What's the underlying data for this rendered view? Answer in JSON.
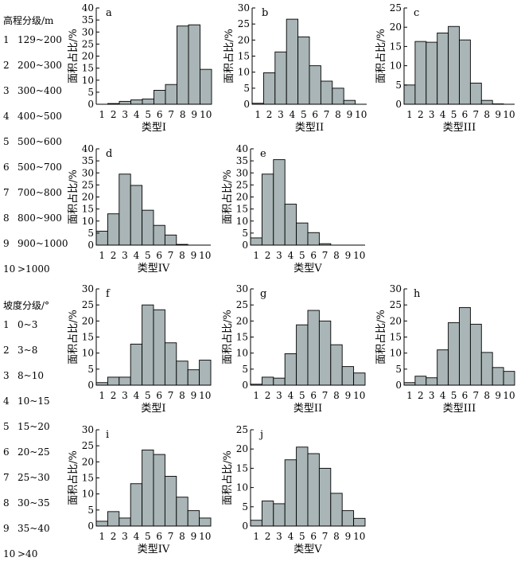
{
  "elevation_legend": {
    "title": "高程分级/m",
    "items": [
      {
        "num": "1",
        "range": "129~200"
      },
      {
        "num": "2",
        "range": "200~300"
      },
      {
        "num": "3",
        "range": "300~400"
      },
      {
        "num": "4",
        "range": "400~500"
      },
      {
        "num": "5",
        "range": "500~600"
      },
      {
        "num": "6",
        "range": "500~700"
      },
      {
        "num": "7",
        "range": "700~800"
      },
      {
        "num": "8",
        "range": "800~900"
      },
      {
        "num": "9",
        "range": "900~1000"
      },
      {
        "num": "10",
        "range": ">1000"
      }
    ]
  },
  "slope_legend": {
    "title": "坡度分级/°",
    "items": [
      {
        "num": "1",
        "range": "0~3"
      },
      {
        "num": "2",
        "range": "3~8"
      },
      {
        "num": "3",
        "range": "8~10"
      },
      {
        "num": "4",
        "range": "10~15"
      },
      {
        "num": "5",
        "range": "15~20"
      },
      {
        "num": "6",
        "range": "20~25"
      },
      {
        "num": "7",
        "range": "25~30"
      },
      {
        "num": "8",
        "range": "30~35"
      },
      {
        "num": "9",
        "range": "35~40"
      },
      {
        "num": "10",
        "range": ">40"
      }
    ]
  },
  "bar_color": "#a9b5b6",
  "chart_data": [
    {
      "panel": "a",
      "type": "bar",
      "categories": [
        "1",
        "2",
        "3",
        "4",
        "5",
        "6",
        "7",
        "8",
        "9",
        "10"
      ],
      "values": [
        0,
        0.3,
        1.2,
        1.8,
        2.2,
        5.8,
        8.2,
        32.5,
        33,
        14.5
      ],
      "ylim": [
        0,
        40
      ],
      "yticks": [
        0,
        5,
        10,
        15,
        20,
        25,
        30,
        35,
        40
      ],
      "ylabel": "面积占比/%",
      "xlabel": "类型I"
    },
    {
      "panel": "b",
      "type": "bar",
      "categories": [
        "1",
        "2",
        "3",
        "4",
        "5",
        "6",
        "7",
        "8",
        "9",
        "10"
      ],
      "values": [
        0.3,
        9.8,
        16.3,
        26.5,
        21,
        12,
        7.2,
        5,
        1.2,
        0
      ],
      "ylim": [
        0,
        30
      ],
      "yticks": [
        0,
        5,
        10,
        15,
        20,
        25,
        30
      ],
      "ylabel": "面积占比/%",
      "xlabel": "类型II"
    },
    {
      "panel": "c",
      "type": "bar",
      "categories": [
        "1",
        "2",
        "3",
        "4",
        "5",
        "6",
        "7",
        "8",
        "9",
        "10"
      ],
      "values": [
        5,
        16.3,
        16.1,
        18.5,
        20.2,
        16.7,
        5.5,
        1,
        0.1,
        0
      ],
      "ylim": [
        0,
        25
      ],
      "yticks": [
        0,
        5,
        10,
        15,
        20,
        25
      ],
      "ylabel": "面积占比/%",
      "xlabel": "类型III"
    },
    {
      "panel": "d",
      "type": "bar",
      "categories": [
        "1",
        "2",
        "3",
        "4",
        "5",
        "6",
        "7",
        "8",
        "9",
        "10"
      ],
      "values": [
        5.8,
        13,
        29.5,
        24.8,
        14.5,
        8.2,
        4.2,
        0.3,
        0,
        0
      ],
      "ylim": [
        0,
        40
      ],
      "yticks": [
        0,
        5,
        10,
        15,
        20,
        25,
        30,
        35,
        40
      ],
      "ylabel": "面积占比/%",
      "xlabel": "类型IV"
    },
    {
      "panel": "e",
      "type": "bar",
      "categories": [
        "1",
        "2",
        "3",
        "4",
        "5",
        "6",
        "7",
        "8",
        "9",
        "10"
      ],
      "values": [
        3,
        29.5,
        35.5,
        17,
        9.2,
        5.2,
        0.6,
        0,
        0,
        0
      ],
      "ylim": [
        0,
        40
      ],
      "yticks": [
        0,
        5,
        10,
        15,
        20,
        25,
        30,
        35,
        40
      ],
      "ylabel": "面积占比/%",
      "xlabel": "类型V"
    },
    {
      "panel": "f",
      "type": "bar",
      "categories": [
        "1",
        "2",
        "3",
        "4",
        "5",
        "6",
        "7",
        "8",
        "9",
        "10"
      ],
      "values": [
        0.8,
        2.5,
        2.5,
        12.8,
        25,
        23.5,
        13.2,
        7.5,
        4.8,
        7.8
      ],
      "ylim": [
        0,
        30
      ],
      "yticks": [
        0,
        5,
        10,
        15,
        20,
        25,
        30
      ],
      "ylabel": "面积占比/%",
      "xlabel": "类型I"
    },
    {
      "panel": "g",
      "type": "bar",
      "categories": [
        "1",
        "2",
        "3",
        "4",
        "5",
        "6",
        "7",
        "8",
        "9",
        "10"
      ],
      "values": [
        0.3,
        2.5,
        2.2,
        9.8,
        18.8,
        23.3,
        20,
        12.6,
        5.8,
        3.8
      ],
      "ylim": [
        0,
        30
      ],
      "yticks": [
        0,
        5,
        10,
        15,
        20,
        25,
        30
      ],
      "ylabel": "面积占比/%",
      "xlabel": "类型II"
    },
    {
      "panel": "h",
      "type": "bar",
      "categories": [
        "1",
        "2",
        "3",
        "4",
        "5",
        "6",
        "7",
        "8",
        "9",
        "10"
      ],
      "values": [
        0.8,
        2.8,
        2.3,
        11,
        19.5,
        24.2,
        19,
        10.2,
        5.5,
        4.3
      ],
      "ylim": [
        0,
        30
      ],
      "yticks": [
        0,
        5,
        10,
        15,
        20,
        25,
        30
      ],
      "ylabel": "面积占比/%",
      "xlabel": "类型III"
    },
    {
      "panel": "i",
      "type": "bar",
      "categories": [
        "1",
        "2",
        "3",
        "4",
        "5",
        "6",
        "7",
        "8",
        "9",
        "10"
      ],
      "values": [
        1.5,
        4.5,
        2.5,
        13.2,
        23.7,
        22.3,
        15.5,
        9,
        4.8,
        2.5
      ],
      "ylim": [
        0,
        30
      ],
      "yticks": [
        0,
        5,
        10,
        15,
        20,
        25,
        30
      ],
      "ylabel": "面积占比/%",
      "xlabel": "类型IV"
    },
    {
      "panel": "j",
      "type": "bar",
      "categories": [
        "1",
        "2",
        "3",
        "4",
        "5",
        "6",
        "7",
        "8",
        "9",
        "10"
      ],
      "values": [
        1.5,
        6.5,
        5.8,
        17.2,
        20.5,
        18.8,
        15,
        8.5,
        4,
        2
      ],
      "ylim": [
        0,
        25
      ],
      "yticks": [
        0,
        5,
        10,
        15,
        20,
        25
      ],
      "ylabel": "面积占比/%",
      "xlabel": "类型V"
    }
  ]
}
